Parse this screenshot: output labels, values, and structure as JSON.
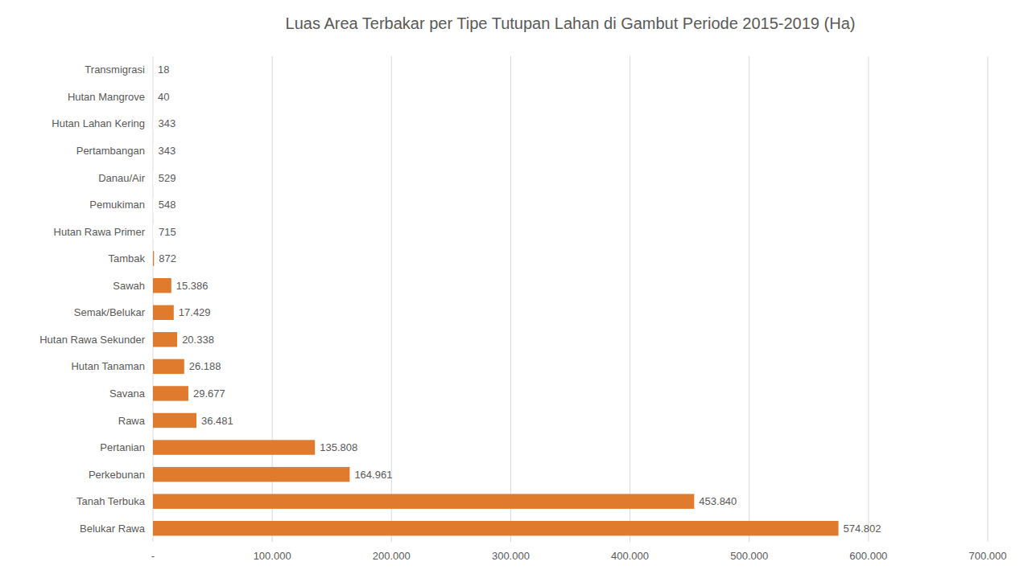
{
  "chart_data": {
    "type": "bar",
    "orientation": "horizontal",
    "title": "Luas Area Terbakar per Tipe Tutupan Lahan di Gambut Periode 2015-2019 (Ha)",
    "categories": [
      "Belukar Rawa",
      "Tanah Terbuka",
      "Perkebunan",
      "Pertanian",
      "Rawa",
      "Savana",
      "Hutan Tanaman",
      "Hutan Rawa Sekunder",
      "Semak/Belukar",
      "Sawah",
      "Tambak",
      "Hutan Rawa Primer",
      "Pemukiman",
      "Danau/Air",
      "Pertambangan",
      "Hutan Lahan Kering",
      "Hutan Mangrove",
      "Transmigrasi"
    ],
    "values": [
      574802,
      453840,
      164961,
      135808,
      36481,
      29677,
      26188,
      20338,
      17429,
      15386,
      872,
      715,
      548,
      529,
      343,
      343,
      40,
      18
    ],
    "value_labels": [
      "574.802",
      "453.840",
      "164.961",
      "135.808",
      "36.481",
      "29.677",
      "26.188",
      "20.338",
      "17.429",
      "15.386",
      "872",
      "715",
      "548",
      "529",
      "343",
      "343",
      "40",
      "18"
    ],
    "colors": [
      "#e07b2e",
      "#e07b2e",
      "#e07b2e",
      "#e07b2e",
      "#e07b2e",
      "#e07b2e",
      "#e07b2e",
      "#e07b2e",
      "#e07b2e",
      "#e07b2e",
      "#e07b2e",
      "#ffffff",
      "#ffffff",
      "#ffffff",
      "#ffffff",
      "#ffffff",
      "#ffffff",
      "#ffffff"
    ],
    "xlim": [
      0,
      700000
    ],
    "xticks": [
      {
        "value": 0,
        "label": "-"
      },
      {
        "value": 100000,
        "label": "100.000"
      },
      {
        "value": 200000,
        "label": "200.000"
      },
      {
        "value": 300000,
        "label": "300.000"
      },
      {
        "value": 400000,
        "label": "400.000"
      },
      {
        "value": 500000,
        "label": "500.000"
      },
      {
        "value": 600000,
        "label": "600.000"
      },
      {
        "value": 700000,
        "label": "700.000"
      }
    ],
    "grid": true,
    "data_labels": true
  }
}
